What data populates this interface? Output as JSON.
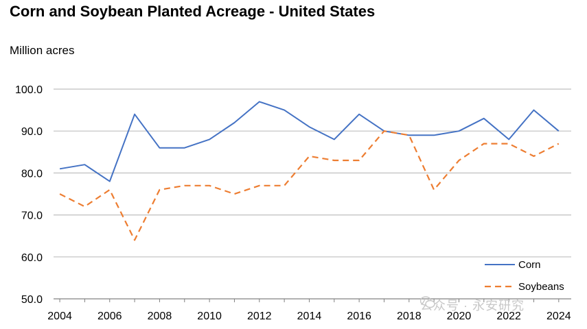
{
  "chart_data": {
    "type": "line",
    "title": "Corn and Soybean Planted Acreage - United States",
    "ylabel": "Million acres",
    "xlabel": "",
    "x": [
      2004,
      2005,
      2006,
      2007,
      2008,
      2009,
      2010,
      2011,
      2012,
      2013,
      2014,
      2015,
      2016,
      2017,
      2018,
      2019,
      2020,
      2021,
      2022,
      2023,
      2024
    ],
    "x_ticks": [
      "2004",
      "2006",
      "2008",
      "2010",
      "2012",
      "2014",
      "2016",
      "2018",
      "2020",
      "2022",
      "2024"
    ],
    "ylim": [
      50,
      100
    ],
    "y_ticks": [
      "50.0",
      "60.0",
      "70.0",
      "80.0",
      "90.0",
      "100.0"
    ],
    "grid": "horizontal",
    "legend_position": "bottom-right",
    "series": [
      {
        "name": "Corn",
        "color": "#4472C4",
        "style": "solid",
        "values": [
          81,
          82,
          78,
          94,
          86,
          86,
          88,
          92,
          97,
          95,
          91,
          88,
          94,
          90,
          89,
          89,
          90,
          93,
          88,
          95,
          90
        ]
      },
      {
        "name": "Soybeans",
        "color": "#ED7D31",
        "style": "dashed",
        "values": [
          75,
          72,
          76,
          64,
          76,
          77,
          77,
          75,
          77,
          77,
          84,
          83,
          83,
          90,
          89,
          76,
          83,
          87,
          87,
          84,
          87
        ]
      }
    ]
  },
  "watermark": {
    "text": "公众号 · 永安研究",
    "icon": "wechat-icon"
  }
}
